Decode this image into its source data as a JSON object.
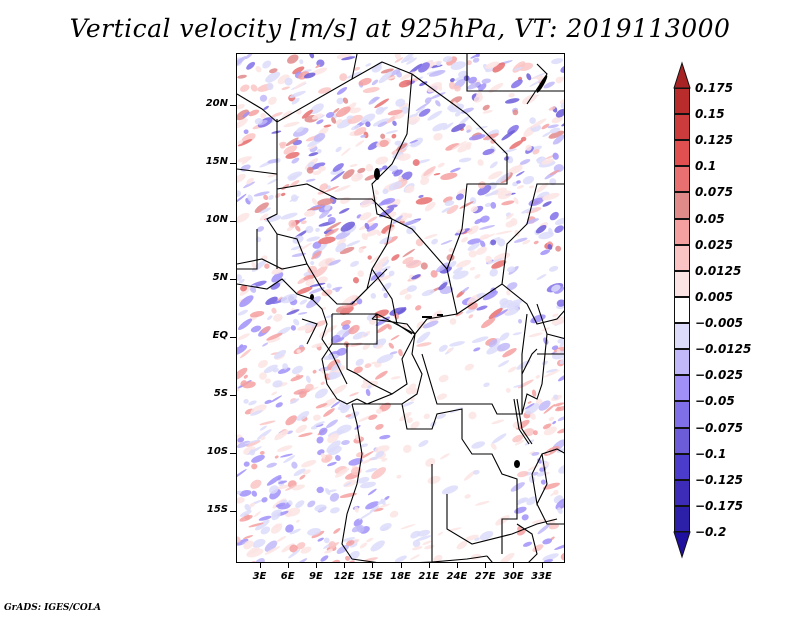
{
  "title": "Vertical velocity [m/s] at 925hPa, VT: 2019113000",
  "footer": "GrADS: IGES/COLA",
  "map": {
    "region": "Central/West Africa",
    "variable": "Vertical velocity",
    "units": "m/s",
    "level": "925hPa",
    "valid_time": "2019113000",
    "lat_ticks": [
      "20N",
      "15N",
      "10N",
      "5N",
      "EQ",
      "5S",
      "10S",
      "15S"
    ],
    "lat_values": [
      20,
      15,
      10,
      5,
      0,
      -5,
      -10,
      -15
    ],
    "lon_ticks": [
      "3E",
      "6E",
      "9E",
      "12E",
      "15E",
      "18E",
      "21E",
      "24E",
      "27E",
      "30E",
      "33E"
    ],
    "lon_values": [
      3,
      6,
      9,
      12,
      15,
      18,
      21,
      24,
      27,
      30,
      33
    ],
    "lat_range": [
      -19.5,
      24.5
    ],
    "lon_range": [
      0.5,
      35.5
    ]
  },
  "colorbar": {
    "labels": [
      "0.175",
      "0.15",
      "0.125",
      "0.1",
      "0.075",
      "0.05",
      "0.025",
      "0.0125",
      "0.005",
      "−0.005",
      "−0.0125",
      "−0.025",
      "−0.05",
      "−0.075",
      "−0.1",
      "−0.125",
      "−0.175",
      "−0.2"
    ],
    "colors": [
      "#a82424",
      "#b82c2c",
      "#cc3c3c",
      "#e05050",
      "#e87070",
      "#e08a8a",
      "#f4a0a0",
      "#fac4c4",
      "#fde4e4",
      "#ffffff",
      "#dcdcfa",
      "#c0b8f8",
      "#a090f8",
      "#8070e8",
      "#6c5cd8",
      "#4c3ccc",
      "#3c2cb8",
      "#2c20a8",
      "#2010a0"
    ],
    "top_arrow_color": "#a82424",
    "bottom_arrow_color": "#2010a0"
  }
}
